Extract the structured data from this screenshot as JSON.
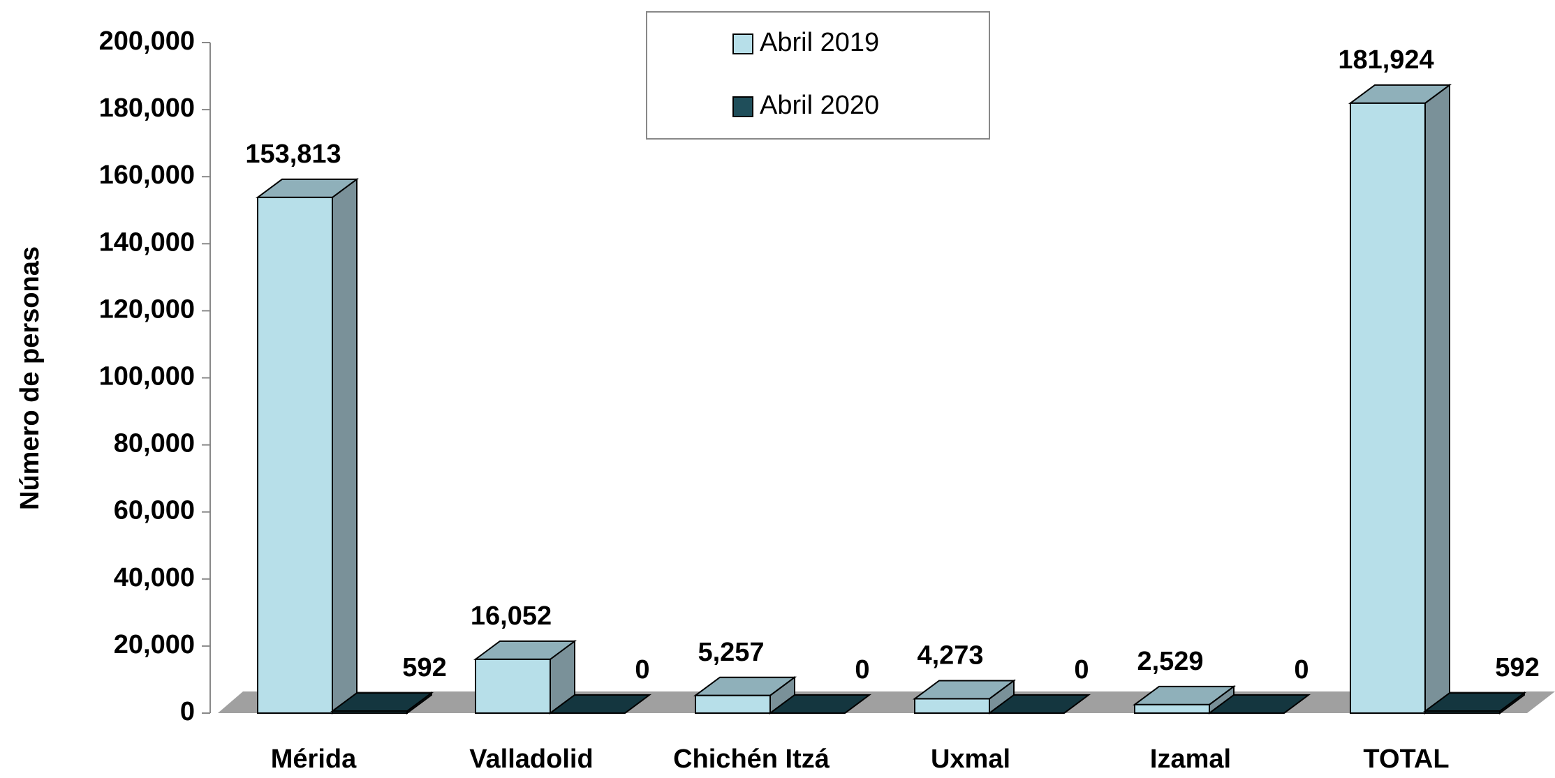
{
  "chart_data": {
    "type": "bar3d",
    "y_label": "Número de personas",
    "categories": [
      "Mérida",
      "Valladolid",
      "Chichén Itzá",
      "Uxmal",
      "Izamal",
      "TOTAL"
    ],
    "series": [
      {
        "name": "Abril 2019",
        "color": "#b7dfe9",
        "values": [
          153813,
          16052,
          5257,
          4273,
          2529,
          181924
        ],
        "value_labels": [
          "153,813",
          "16,052",
          "5,257",
          "4,273",
          "2,529",
          "181,924"
        ]
      },
      {
        "name": "Abril 2020",
        "color": "#1f4e5a",
        "values": [
          592,
          0,
          0,
          0,
          0,
          592
        ],
        "value_labels": [
          "592",
          "0",
          "0",
          "0",
          "0",
          "592"
        ]
      }
    ],
    "ylim": [
      0,
      200000
    ],
    "yticks": [
      0,
      {
        "value": 20000,
        "label": "20,000"
      },
      {
        "value": 40000,
        "label": "40,000"
      },
      {
        "value": 60000,
        "label": "60,000"
      },
      {
        "value": 80000,
        "label": "80,000"
      },
      {
        "value": 100000,
        "label": "100,000"
      },
      {
        "value": 120000,
        "label": "120,000"
      },
      {
        "value": 140000,
        "label": "140,000"
      },
      {
        "value": 160000,
        "label": "160,000"
      },
      {
        "value": 180000,
        "label": "180,000"
      },
      {
        "value": 200000,
        "label": "200,000"
      }
    ],
    "legend": "top-center"
  }
}
